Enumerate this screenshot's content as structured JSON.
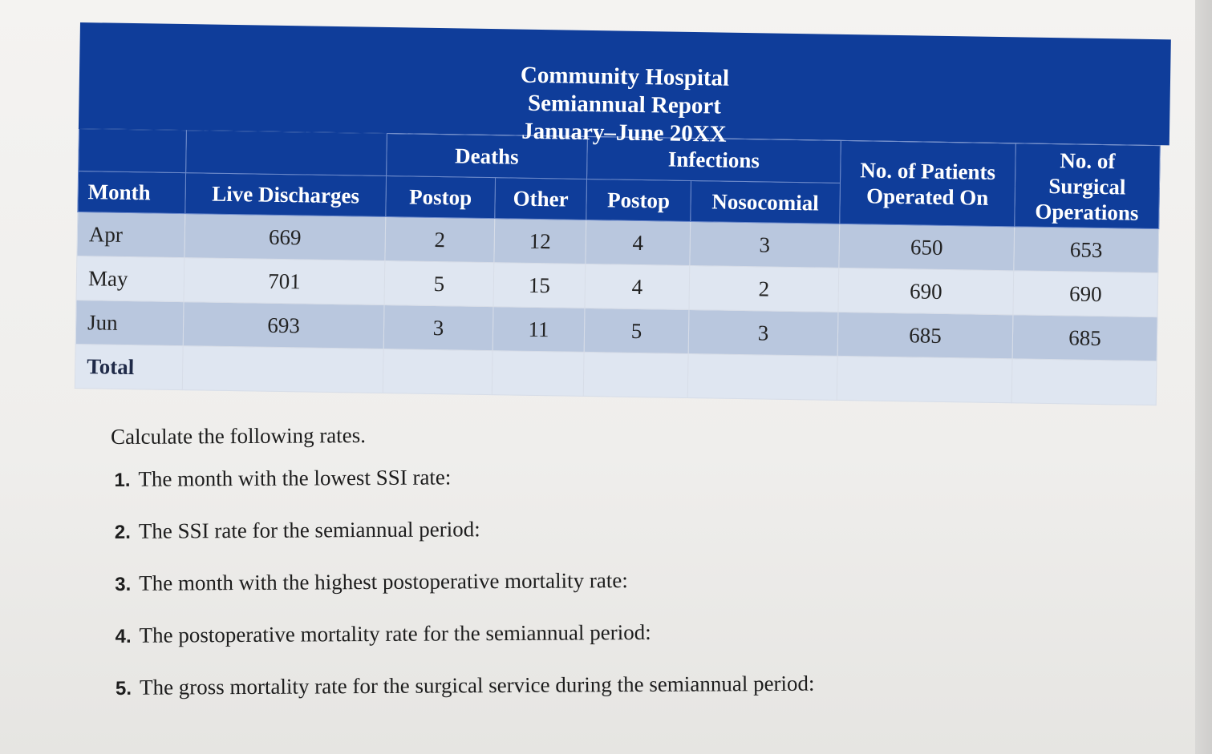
{
  "header": {
    "line1": "Community Hospital",
    "line2": "Semiannual Report",
    "line3": "January–June 20XX"
  },
  "table": {
    "group_headers": {
      "deaths": "Deaths",
      "infections": "Infections"
    },
    "columns": {
      "month": "Month",
      "live_discharges": "Live Discharges",
      "deaths_postop": "Postop",
      "deaths_other": "Other",
      "infections_postop": "Postop",
      "infections_nosocomial": "Nosocomial",
      "patients_operated_line1": "No. of Patients",
      "patients_operated_line2": "Operated On",
      "surgical_ops_line1": "No. of Surgical",
      "surgical_ops_line2": "Operations"
    },
    "rows": [
      {
        "month": "Apr",
        "live_discharges": "669",
        "deaths_postop": "2",
        "deaths_other": "12",
        "infections_postop": "4",
        "infections_nosocomial": "3",
        "patients_operated": "650",
        "surgical_ops": "653"
      },
      {
        "month": "May",
        "live_discharges": "701",
        "deaths_postop": "5",
        "deaths_other": "15",
        "infections_postop": "4",
        "infections_nosocomial": "2",
        "patients_operated": "690",
        "surgical_ops": "690"
      },
      {
        "month": "Jun",
        "live_discharges": "693",
        "deaths_postop": "3",
        "deaths_other": "11",
        "infections_postop": "5",
        "infections_nosocomial": "3",
        "patients_operated": "685",
        "surgical_ops": "685"
      }
    ],
    "total_label": "Total"
  },
  "instructions": "Calculate the following rates.",
  "questions": [
    {
      "num": "1.",
      "text": "The month with the lowest SSI rate:"
    },
    {
      "num": "2.",
      "text": "The SSI rate for the semiannual period:"
    },
    {
      "num": "3.",
      "text": "The month with the highest postoperative mortality rate:"
    },
    {
      "num": "4.",
      "text": "The postoperative mortality rate for the semiannual period:"
    },
    {
      "num": "5.",
      "text": "The gross mortality rate for the surgical service during the semiannual period:"
    }
  ]
}
